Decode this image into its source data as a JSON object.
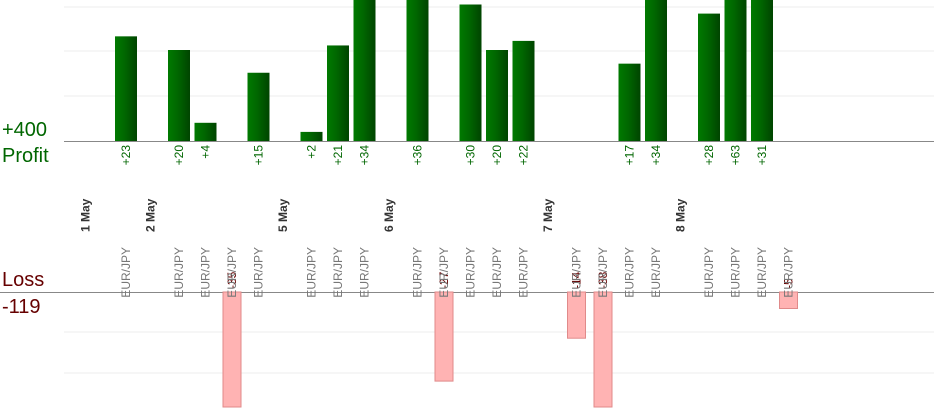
{
  "chart_data": {
    "type": "bar",
    "profit_label": "Profit",
    "profit_total": "+400",
    "loss_label": "Loss",
    "loss_total": "-119",
    "colors": {
      "profit_bar": "#006600",
      "loss_bar": "#ffb3b3",
      "profit_text": "#006600",
      "loss_text": "#660000",
      "date_text": "#333333",
      "pair_text": "#777777"
    },
    "days": [
      {
        "date": "1 May",
        "trades": [
          {
            "pair": "EUR/JPY",
            "value": 23,
            "label": "+23"
          }
        ]
      },
      {
        "date": "2 May",
        "trades": [
          {
            "pair": "EUR/JPY",
            "value": 20,
            "label": "+20"
          },
          {
            "pair": "EUR/JPY",
            "value": 4,
            "label": "+4"
          },
          {
            "pair": "EUR/JPY",
            "value": -35,
            "label": "-35"
          },
          {
            "pair": "EUR/JPY",
            "value": 15,
            "label": "+15"
          }
        ]
      },
      {
        "date": "5 May",
        "trades": [
          {
            "pair": "EUR/JPY",
            "value": 2,
            "label": "+2"
          },
          {
            "pair": "EUR/JPY",
            "value": 21,
            "label": "+21"
          },
          {
            "pair": "EUR/JPY",
            "value": 34,
            "label": "+34"
          }
        ]
      },
      {
        "date": "6 May",
        "trades": [
          {
            "pair": "EUR/JPY",
            "value": 36,
            "label": "+36"
          },
          {
            "pair": "EUR/JPY",
            "value": -27,
            "label": "-27"
          },
          {
            "pair": "EUR/JPY",
            "value": 30,
            "label": "+30"
          },
          {
            "pair": "EUR/JPY",
            "value": 20,
            "label": "+20"
          },
          {
            "pair": "EUR/JPY",
            "value": 22,
            "label": "+22"
          }
        ]
      },
      {
        "date": "7 May",
        "trades": [
          {
            "pair": "EUR/JPY",
            "value": -14,
            "label": "-14"
          },
          {
            "pair": "EUR/JPY",
            "value": -38,
            "label": "-38"
          },
          {
            "pair": "EUR/JPY",
            "value": 17,
            "label": "+17"
          },
          {
            "pair": "EUR/JPY",
            "value": 34,
            "label": "+34"
          }
        ]
      },
      {
        "date": "8 May",
        "trades": [
          {
            "pair": "EUR/JPY",
            "value": 28,
            "label": "+28"
          },
          {
            "pair": "EUR/JPY",
            "value": 63,
            "label": "+63"
          },
          {
            "pair": "EUR/JPY",
            "value": 31,
            "label": "+31"
          },
          {
            "pair": "EUR/JPY",
            "value": -5,
            "label": "-5"
          }
        ]
      }
    ]
  }
}
